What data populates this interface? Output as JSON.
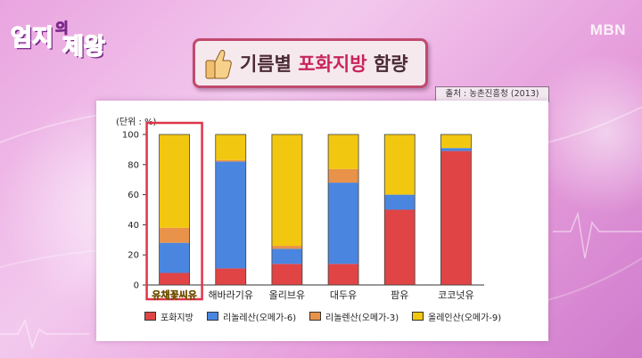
{
  "show_logo": {
    "line1": "엄지",
    "line2": "의",
    "line3": "제왕"
  },
  "channel_logo": "MBN",
  "banner": {
    "title_prefix": "기름별 ",
    "title_highlight": "포화지방",
    "title_suffix": " 함량",
    "icon": "thumbs-up-icon"
  },
  "source_text": "출처 : 농촌진흥청 (2013)",
  "chart_data": {
    "type": "bar",
    "stacked": true,
    "unit_label": "(단위 : %)",
    "categories": [
      "유채꽃씨유",
      "해바라기유",
      "올리브유",
      "대두유",
      "팜유",
      "코코넛유"
    ],
    "highlighted_category": "유채꽃씨유",
    "ylim": [
      0,
      100
    ],
    "yticks": [
      0,
      20,
      40,
      60,
      80,
      100
    ],
    "series": [
      {
        "name": "포화지방",
        "color": "#e04444",
        "values": [
          8,
          11,
          14,
          14,
          50,
          89
        ]
      },
      {
        "name": "리놀레산(오메가-6)",
        "color": "#4a86e0",
        "values": [
          20,
          71,
          10,
          54,
          10,
          2
        ]
      },
      {
        "name": "리놀렌산(오메가-3)",
        "color": "#e9924a",
        "values": [
          10,
          1,
          2,
          9,
          0,
          0
        ]
      },
      {
        "name": "올레인산(오메가-9)",
        "color": "#f2c70f",
        "values": [
          62,
          17,
          74,
          23,
          40,
          9
        ]
      }
    ],
    "legend_position": "bottom"
  }
}
